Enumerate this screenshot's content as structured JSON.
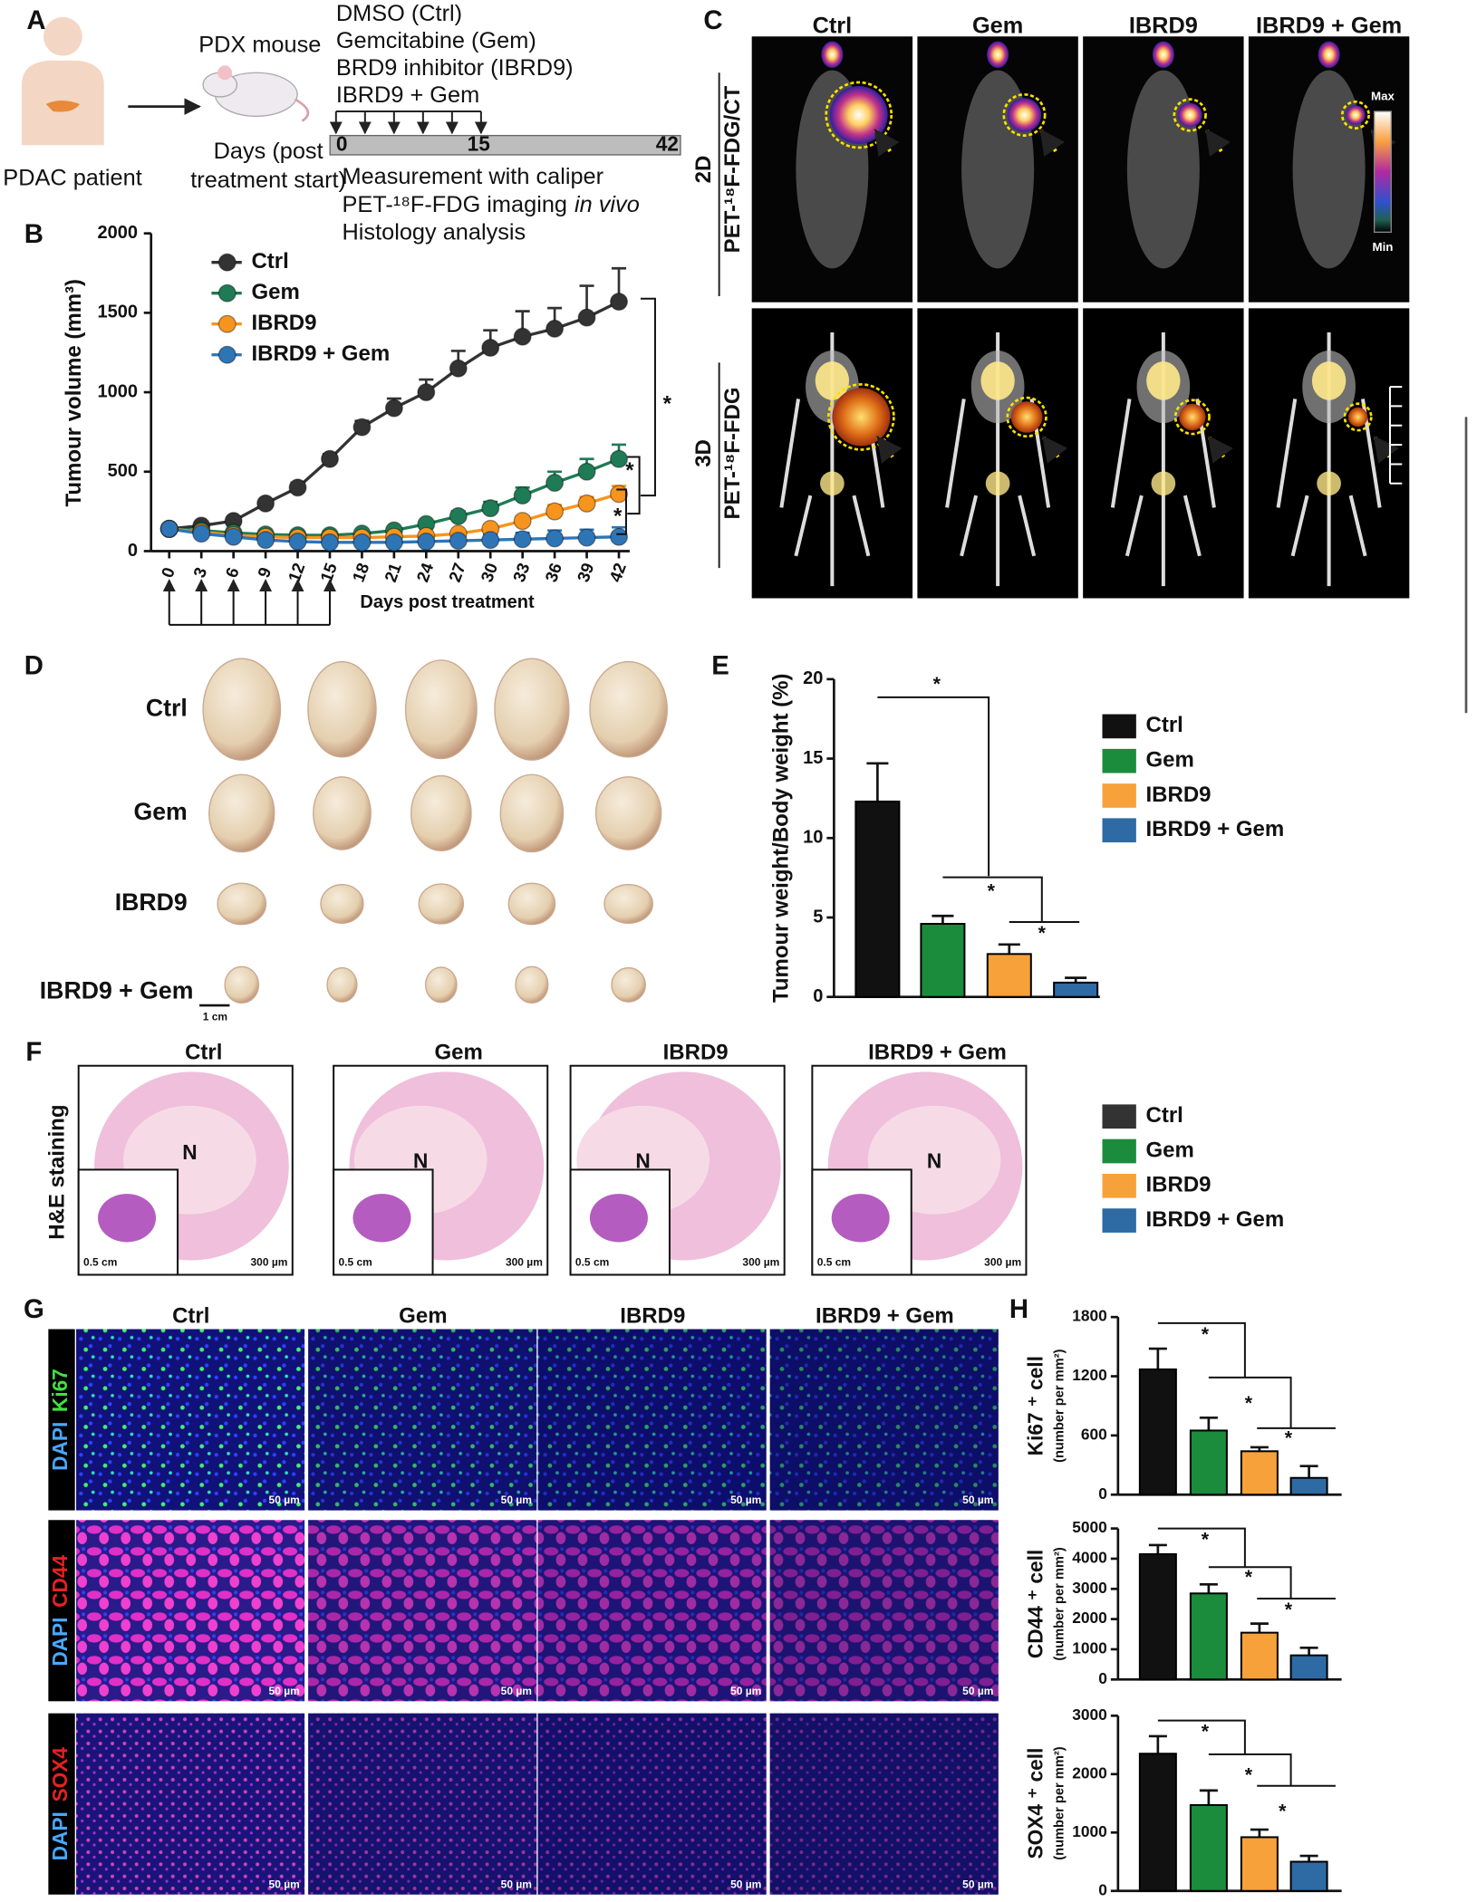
{
  "panels": [
    "A",
    "B",
    "C",
    "D",
    "E",
    "F",
    "G",
    "H"
  ],
  "schematic": {
    "patient": "PDAC patient",
    "mouse": "PDX mouse",
    "days": [
      "Days (post",
      "treatment start)"
    ],
    "groups": [
      "DMSO (Ctrl)",
      "Gemcitabine (Gem)",
      "BRD9 inhibitor (IBRD9)",
      "IBRD9 + Gem"
    ],
    "timeline": [
      "0",
      "15",
      "42"
    ],
    "assays": [
      "Measurement with caliper",
      "PET-¹⁸F-FDG imaging",
      "in vivo",
      "Histology analysis"
    ]
  },
  "pet": {
    "columns": [
      "Ctrl",
      "Gem",
      "IBRD9",
      "IBRD9 + Gem"
    ],
    "rows": [
      [
        "2D",
        "PET-¹⁸F-FDG/CT"
      ],
      [
        "3D",
        "PET-¹⁸F-FDG"
      ]
    ],
    "scale": [
      "Max",
      "Min"
    ]
  },
  "tumours": {
    "rows": [
      "Ctrl",
      "Gem",
      "IBRD9",
      "IBRD9 + Gem"
    ],
    "scale_bar": "1 cm"
  },
  "histology": {
    "columns": [
      "Ctrl",
      "Gem",
      "IBRD9",
      "IBRD9 + Gem"
    ],
    "row_label": "H&E staining",
    "necrosis": "N",
    "inset_scale": "0.5 cm",
    "scale": "300 µm",
    "legend": [
      {
        "name": "Ctrl",
        "color": "#333333"
      },
      {
        "name": "Gem",
        "color": "#1a8c3c"
      },
      {
        "name": "IBRD9",
        "color": "#f7a13a"
      },
      {
        "name": "IBRD9 + Gem",
        "color": "#2e6aa3"
      }
    ]
  },
  "staining": {
    "columns": [
      "Ctrl",
      "Gem",
      "IBRD9",
      "IBRD9 + Gem"
    ],
    "rows": [
      [
        "DAPI",
        "Ki67"
      ],
      [
        "DAPI",
        "CD44"
      ],
      [
        "DAPI",
        "SOX4"
      ]
    ],
    "scale": "50 µm"
  },
  "chart_data": [
    {
      "type": "line",
      "xlabel": "Days post treatment",
      "ylabel": "Tumour volume (mm³)",
      "legend": "upper left",
      "x": [
        0,
        3,
        6,
        9,
        12,
        15,
        18,
        21,
        24,
        27,
        30,
        33,
        36,
        39,
        42
      ],
      "xticks": [
        0,
        3,
        6,
        9,
        12,
        15,
        18,
        21,
        24,
        27,
        30,
        33,
        36,
        39,
        42
      ],
      "xlim": [
        -2,
        43
      ],
      "ylim": [
        0,
        2000
      ],
      "yticks": [
        0,
        500,
        1000,
        1500,
        2000
      ],
      "treatment_days": [
        0,
        3,
        6,
        9,
        12,
        15
      ],
      "series": [
        {
          "name": "Ctrl",
          "color": "#333333",
          "values": [
            140,
            160,
            190,
            300,
            400,
            580,
            780,
            900,
            1000,
            1150,
            1280,
            1350,
            1400,
            1470,
            1570
          ],
          "errors": [
            10,
            15,
            20,
            20,
            30,
            30,
            40,
            60,
            80,
            110,
            110,
            160,
            130,
            200,
            210
          ]
        },
        {
          "name": "Gem",
          "color": "#1e7b55",
          "values": [
            140,
            130,
            115,
            105,
            100,
            100,
            110,
            130,
            170,
            220,
            270,
            350,
            430,
            500,
            580
          ],
          "errors": [
            10,
            10,
            10,
            10,
            10,
            10,
            10,
            15,
            20,
            30,
            40,
            50,
            70,
            80,
            90
          ]
        },
        {
          "name": "IBRD9",
          "color": "#f7941d",
          "values": [
            140,
            120,
            100,
            90,
            85,
            85,
            85,
            90,
            95,
            110,
            140,
            190,
            250,
            300,
            360
          ],
          "errors": [
            10,
            10,
            10,
            10,
            10,
            10,
            10,
            10,
            15,
            20,
            25,
            30,
            40,
            40,
            50
          ]
        },
        {
          "name": "IBRD9 + Gem",
          "color": "#2e75b6",
          "values": [
            140,
            110,
            90,
            70,
            60,
            55,
            55,
            55,
            60,
            65,
            70,
            75,
            80,
            85,
            90
          ],
          "errors": [
            10,
            10,
            10,
            10,
            10,
            10,
            10,
            10,
            15,
            20,
            35,
            40,
            50,
            50,
            60
          ]
        }
      ],
      "annotations": [
        "*",
        "*",
        "*"
      ]
    },
    {
      "type": "bar",
      "ylabel": "Tumour weight/Body weight (%)",
      "legend": "right",
      "ylim": [
        0,
        20
      ],
      "yticks": [
        0,
        5,
        10,
        15,
        20
      ],
      "series": [
        {
          "name": "Ctrl",
          "color": "#111111",
          "values": [
            12.3
          ],
          "errors": [
            2.4
          ]
        },
        {
          "name": "Gem",
          "color": "#1a8c3c",
          "values": [
            4.6
          ],
          "errors": [
            0.5
          ]
        },
        {
          "name": "IBRD9",
          "color": "#f7a13a",
          "values": [
            2.7
          ],
          "errors": [
            0.6
          ]
        },
        {
          "name": "IBRD9 + Gem",
          "color": "#2e6aa3",
          "values": [
            0.9
          ],
          "errors": [
            0.3
          ]
        }
      ],
      "annotations": [
        "*",
        "*",
        "*"
      ]
    },
    {
      "type": "bar",
      "ylabel": [
        "Ki67 ⁺ cell",
        "(number per mm²)"
      ],
      "ylim": [
        0,
        1800
      ],
      "yticks": [
        0,
        600,
        1200,
        1800
      ],
      "series": [
        {
          "color": "#111111",
          "values": [
            1270
          ],
          "errors": [
            210
          ]
        },
        {
          "color": "#1a8c3c",
          "values": [
            650
          ],
          "errors": [
            130
          ]
        },
        {
          "color": "#f7a13a",
          "values": [
            440
          ],
          "errors": [
            40
          ]
        },
        {
          "color": "#2e6aa3",
          "values": [
            170
          ],
          "errors": [
            120
          ]
        }
      ],
      "annotations": [
        "*",
        "*",
        "*"
      ]
    },
    {
      "type": "bar",
      "ylabel": [
        "CD44 ⁺ cell",
        "(number per mm²)"
      ],
      "ylim": [
        0,
        5000
      ],
      "yticks": [
        0,
        1000,
        2000,
        3000,
        4000,
        5000
      ],
      "series": [
        {
          "color": "#111111",
          "values": [
            4150
          ],
          "errors": [
            300
          ]
        },
        {
          "color": "#1a8c3c",
          "values": [
            2850
          ],
          "errors": [
            300
          ]
        },
        {
          "color": "#f7a13a",
          "values": [
            1550
          ],
          "errors": [
            300
          ]
        },
        {
          "color": "#2e6aa3",
          "values": [
            800
          ],
          "errors": [
            250
          ]
        }
      ],
      "annotations": [
        "*",
        "*",
        "*"
      ]
    },
    {
      "type": "bar",
      "ylabel": [
        "SOX4 ⁺ cell",
        "(number per mm²)"
      ],
      "ylim": [
        0,
        3000
      ],
      "yticks": [
        0,
        1000,
        2000,
        3000
      ],
      "series": [
        {
          "color": "#111111",
          "values": [
            2350
          ],
          "errors": [
            300
          ]
        },
        {
          "color": "#1a8c3c",
          "values": [
            1470
          ],
          "errors": [
            250
          ]
        },
        {
          "color": "#f7a13a",
          "values": [
            920
          ],
          "errors": [
            130
          ]
        },
        {
          "color": "#2e6aa3",
          "values": [
            500
          ],
          "errors": [
            100
          ]
        }
      ],
      "annotations": [
        "*",
        "*",
        "*"
      ]
    }
  ]
}
